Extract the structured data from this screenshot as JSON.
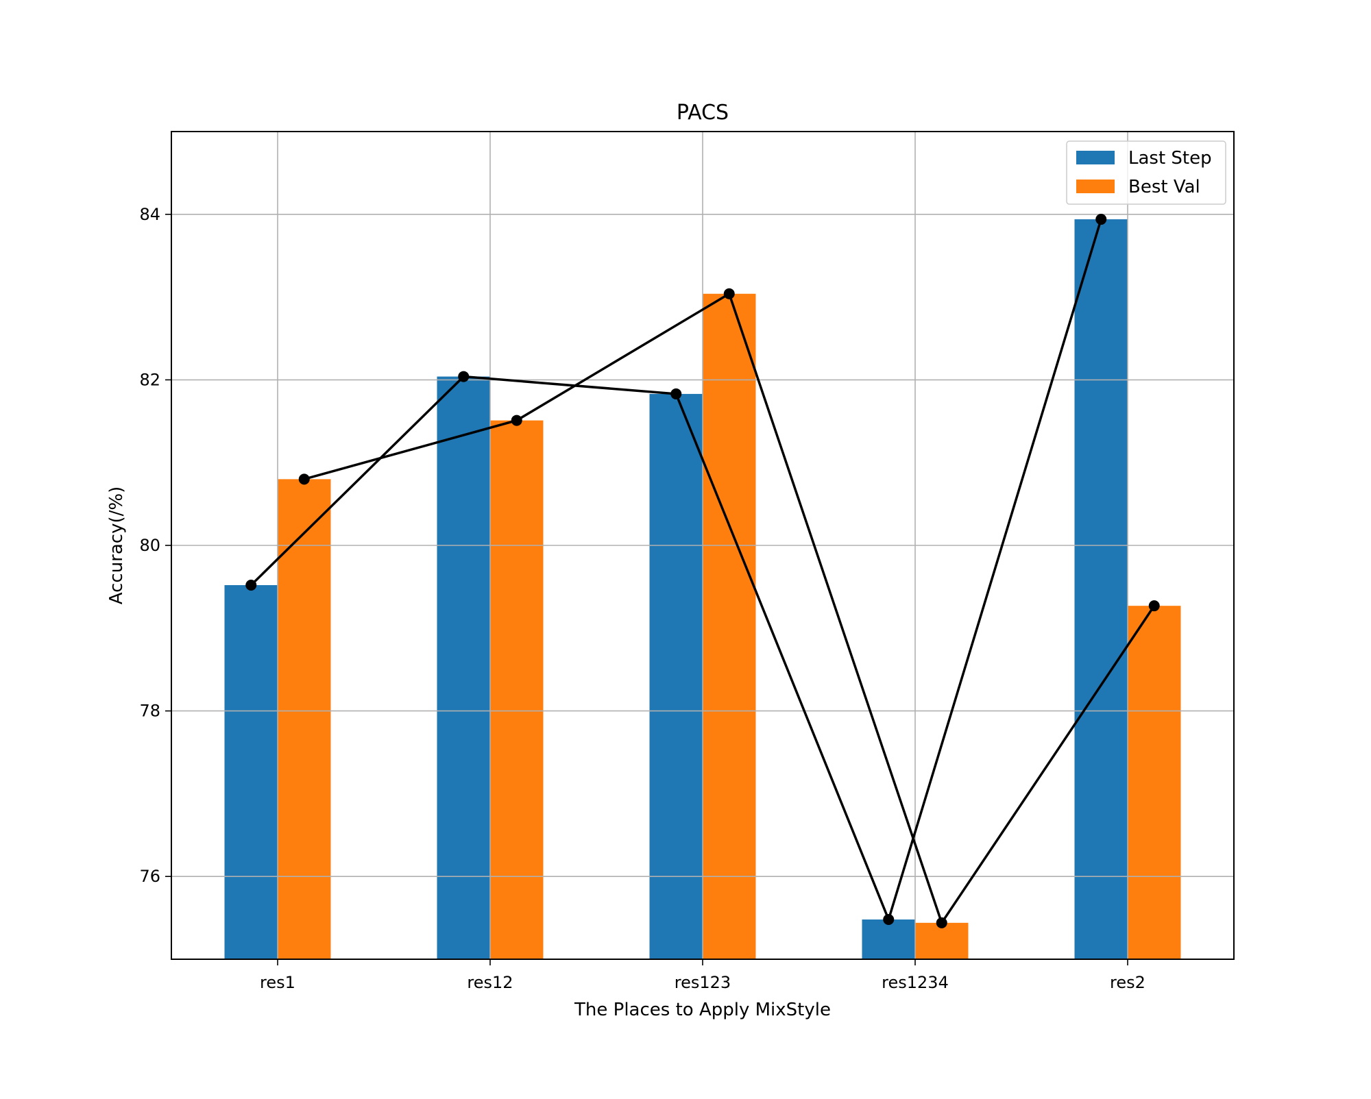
{
  "chart_data": {
    "type": "bar",
    "title": "PACS",
    "xlabel": "The Places to Apply MixStyle",
    "ylabel": "Accuracy(/%)",
    "categories": [
      "res1",
      "res12",
      "res123",
      "res1234",
      "res2"
    ],
    "series": [
      {
        "name": "Last Step",
        "values": [
          79.52,
          82.04,
          81.83,
          75.48,
          83.94
        ],
        "color": "#1f77b4"
      },
      {
        "name": "Best Val",
        "values": [
          80.8,
          81.51,
          83.04,
          75.44,
          79.27
        ],
        "color": "#ff7f0e"
      }
    ],
    "line_overlay": {
      "color": "#000000",
      "marker": "circle"
    },
    "ylim": [
      75.0,
      85.0
    ],
    "yticks": [
      76,
      78,
      80,
      82,
      84
    ],
    "grid": true,
    "legend_position": "top-right"
  }
}
